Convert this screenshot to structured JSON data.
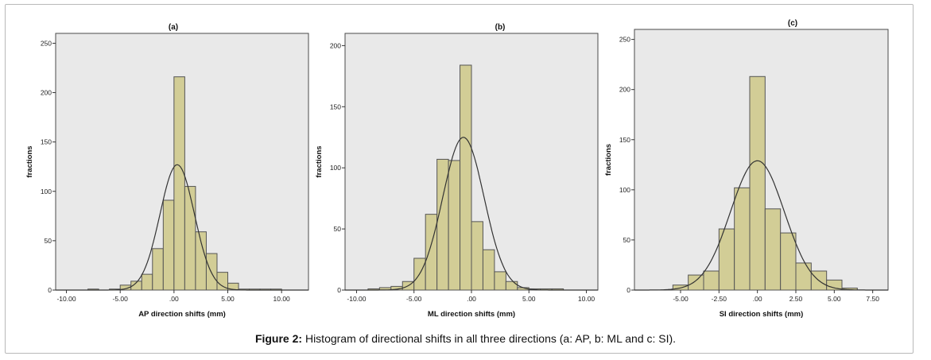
{
  "caption": {
    "label": "Figure 2:",
    "text": " Histogram of directional shifts in all three directions (a: AP, b: ML and c: SI)."
  },
  "colors": {
    "bar": "#d2cd96",
    "panel": "#e9e9e9",
    "curve": "#333333"
  },
  "chart_data": [
    {
      "type": "bar",
      "title": "(a)",
      "xlabel": "AP direction shifts (mm)",
      "ylabel": "fractions",
      "xlim": [
        -11,
        12.5
      ],
      "ylim": [
        0,
        260
      ],
      "xticks": [
        -10,
        -5,
        0,
        5,
        10
      ],
      "xtick_labels": [
        "-10.00",
        "-5.00",
        ".00",
        "5.00",
        "10.00"
      ],
      "yticks": [
        0,
        50,
        100,
        150,
        200,
        250
      ],
      "bin_width": 1,
      "bin_starts": [
        -8,
        -7,
        -6,
        -5,
        -4,
        -3,
        -2,
        -1,
        0,
        1,
        2,
        3,
        4,
        5,
        6,
        7,
        8,
        9
      ],
      "values": [
        1,
        0,
        1,
        5,
        9,
        16,
        42,
        91,
        216,
        105,
        59,
        37,
        18,
        7,
        1,
        1,
        1,
        1
      ],
      "normal_curve": {
        "mean": 0.3,
        "sd": 1.6,
        "peak": 127
      }
    },
    {
      "type": "bar",
      "title": "(b)",
      "xlabel": "ML direction shifts (mm)",
      "ylabel": "fractions",
      "xlim": [
        -11,
        11
      ],
      "ylim": [
        0,
        210
      ],
      "xticks": [
        -10,
        -5,
        0,
        5,
        10
      ],
      "xtick_labels": [
        "-10.00",
        "-5.00",
        ".00",
        "5.00",
        "10.00"
      ],
      "yticks": [
        0,
        50,
        100,
        150,
        200
      ],
      "bin_width": 1,
      "bin_starts": [
        -10,
        -9,
        -8,
        -7,
        -6,
        -5,
        -4,
        -3,
        -2,
        -1,
        0,
        1,
        2,
        3,
        4,
        5,
        6,
        7
      ],
      "values": [
        0,
        1,
        2,
        3,
        7,
        26,
        62,
        107,
        106,
        184,
        56,
        33,
        15,
        7,
        2,
        1,
        1,
        1
      ],
      "normal_curve": {
        "mean": -0.7,
        "sd": 1.8,
        "peak": 125
      }
    },
    {
      "type": "bar",
      "title": "(c)",
      "xlabel": "SI direction shifts (mm)",
      "ylabel": "fractions",
      "xlim": [
        -8,
        8.5
      ],
      "ylim": [
        0,
        260
      ],
      "xticks": [
        -5,
        -2.5,
        0,
        2.5,
        5,
        7.5
      ],
      "xtick_labels": [
        "-5.00",
        "-2.50",
        ".00",
        "2.50",
        "5.00",
        "7.50"
      ],
      "yticks": [
        0,
        50,
        100,
        150,
        200,
        250
      ],
      "bin_width": 1,
      "bin_starts": [
        -5.5,
        -4.5,
        -3.5,
        -2.5,
        -1.5,
        -0.5,
        0.5,
        1.5,
        2.5,
        3.5,
        4.5,
        5.5
      ],
      "values": [
        5,
        15,
        19,
        61,
        102,
        213,
        81,
        57,
        27,
        19,
        10,
        2
      ],
      "normal_curve": {
        "mean": 0,
        "sd": 1.75,
        "peak": 129
      }
    }
  ]
}
